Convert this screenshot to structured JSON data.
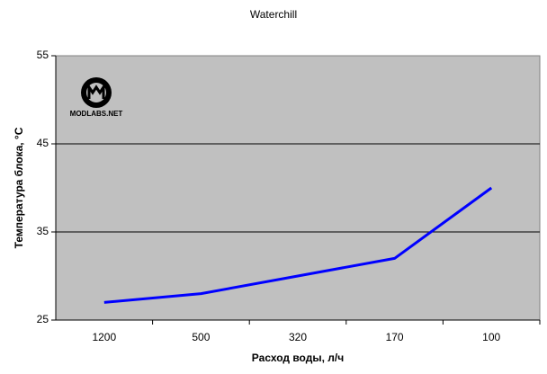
{
  "chart_data": {
    "type": "line",
    "title": "Waterchill",
    "x_label": "Расход воды, л/ч",
    "y_label": "Температура блока, °С",
    "watermark": "MODLABS.NET",
    "categories": [
      "1200",
      "500",
      "320",
      "170",
      "100"
    ],
    "series": [
      {
        "name": "Waterchill",
        "color": "#0000ff",
        "values": [
          27,
          28,
          30,
          32,
          40
        ]
      }
    ],
    "ylim": [
      25,
      55
    ],
    "yticks": [
      25,
      35,
      45,
      55
    ],
    "grid": true
  }
}
